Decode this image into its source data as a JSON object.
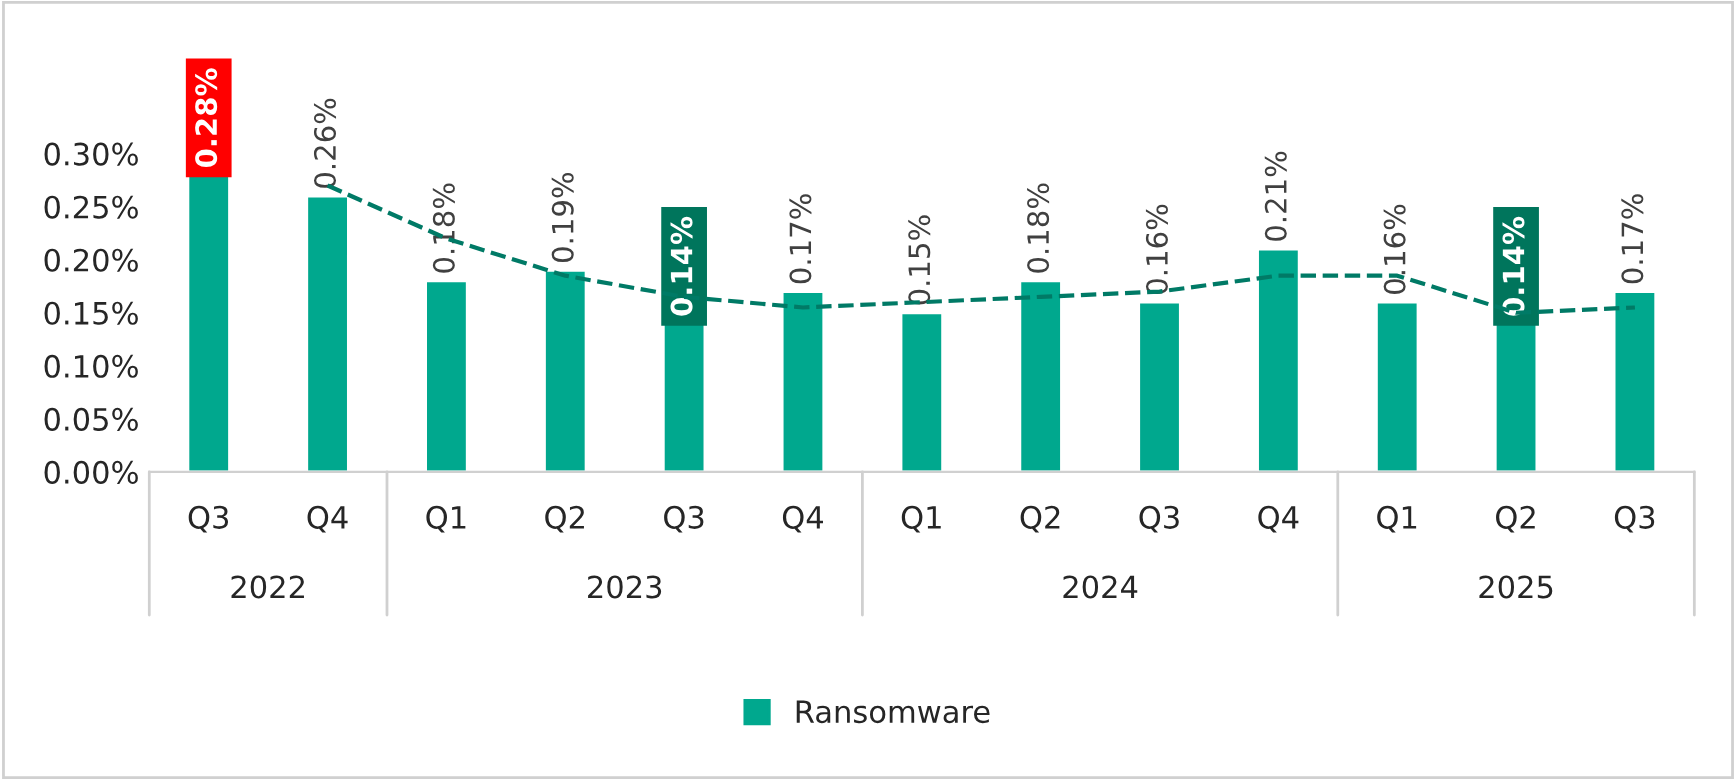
{
  "chart_data": {
    "type": "bar",
    "categories": [
      "Q3",
      "Q4",
      "Q1",
      "Q2",
      "Q3",
      "Q4",
      "Q1",
      "Q2",
      "Q3",
      "Q4",
      "Q1",
      "Q2",
      "Q3"
    ],
    "series": [
      {
        "name": "Ransomware",
        "color": "#00a88e",
        "values": [
          0.28,
          0.26,
          0.18,
          0.19,
          0.14,
          0.17,
          0.15,
          0.18,
          0.16,
          0.21,
          0.16,
          0.14,
          0.17
        ],
        "value_labels": [
          "0.28%",
          "0.26%",
          "0.18%",
          "0.19%",
          "0.14%",
          "0.17%",
          "0.15%",
          "0.18%",
          "0.16%",
          "0.21%",
          "0.16%",
          "0.14%",
          "0.17%"
        ]
      },
      {
        "type": "line",
        "color": "#007a66",
        "line_style": "dashed",
        "marker": "none",
        "values": [
          null,
          0.27,
          0.22,
          0.185,
          0.165,
          0.155,
          0.16,
          0.165,
          0.17,
          0.185,
          0.185,
          0.15,
          0.155
        ]
      }
    ],
    "annotations": [
      "2022",
      "2023",
      "2024",
      "2025"
    ],
    "ylim": [
      0,
      0.3
    ],
    "yticks": [
      {
        "value": 0,
        "label": "0.00%"
      },
      {
        "value": 0.05,
        "label": "0.05%"
      },
      {
        "value": 0.1,
        "label": "0.10%"
      },
      {
        "value": 0.15,
        "label": "0.15%"
      },
      {
        "value": 0.2,
        "label": "0.20%"
      },
      {
        "value": 0.25,
        "label": "0.25%"
      },
      {
        "value": 0.3,
        "label": "0.30%"
      }
    ],
    "grid": false,
    "legend": "bottom"
  }
}
